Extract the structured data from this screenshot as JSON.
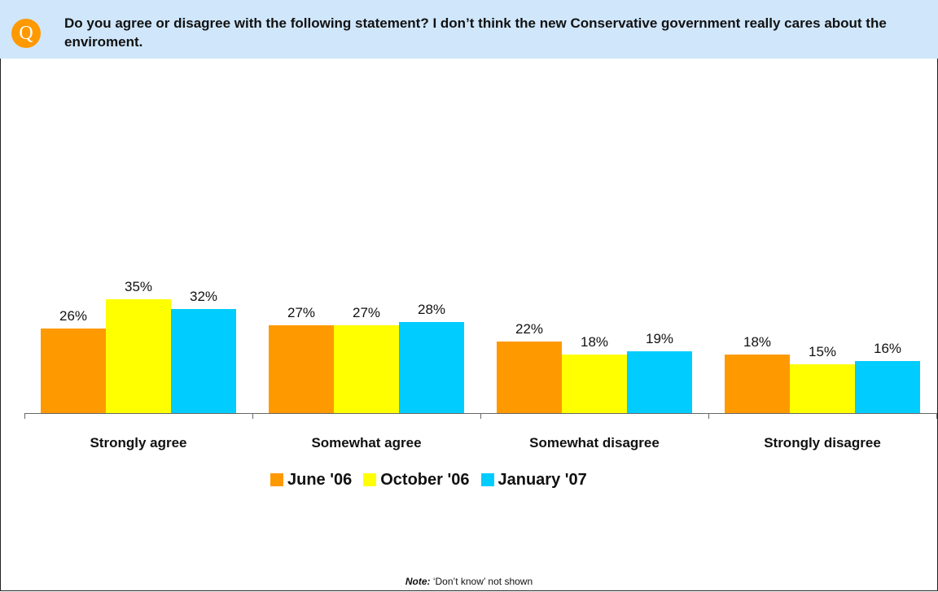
{
  "header": {
    "badge": "Q",
    "question": "Do you agree or disagree with the following statement? I don’t think the new Conservative government really cares about the enviroment."
  },
  "chart_data": {
    "type": "bar",
    "categories": [
      "Strongly agree",
      "Somewhat agree",
      "Somewhat disagree",
      "Strongly disagree"
    ],
    "series": [
      {
        "name": "June '06",
        "color": "#ff9900",
        "values": [
          26,
          27,
          22,
          18
        ]
      },
      {
        "name": "October '06",
        "color": "#ffff00",
        "values": [
          35,
          27,
          18,
          15
        ]
      },
      {
        "name": "January '07",
        "color": "#00ccff",
        "values": [
          32,
          28,
          19,
          16
        ]
      }
    ],
    "value_suffix": "%",
    "ylim": [
      0,
      40
    ],
    "legend_position": "bottom-center",
    "grid": false
  },
  "note": {
    "label": "Note:",
    "text": " ‘Don’t know’ not shown"
  }
}
